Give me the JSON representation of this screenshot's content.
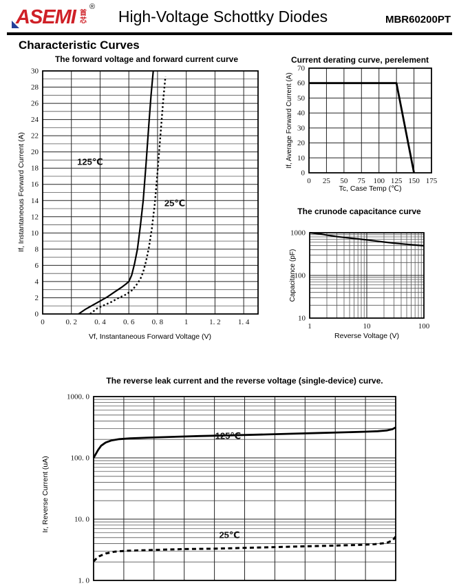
{
  "header": {
    "logo_text": "ASEMI",
    "logo_sub": "首芯",
    "logo_reg": "®",
    "logo_color": "#cf2027",
    "logo_accent_blue": "#24409a",
    "title": "High-Voltage Schottky Diodes",
    "part_number": "MBR60200PT"
  },
  "section_title": "Characteristic Curves",
  "chart_data": [
    {
      "type": "line",
      "title": "The forward voltage and forward current curve",
      "xlabel": "Vf, Instantaneous Forward Voltage (V)",
      "ylabel": "If, Instantaneous Forward Current (A)",
      "x": {
        "scale": "linear",
        "min": 0,
        "max": 1.5
      },
      "y": {
        "scale": "linear",
        "min": 0,
        "max": 30
      },
      "grid": {
        "x_major": [
          0.2,
          0.4,
          0.6,
          0.8,
          1.0,
          1.2,
          1.4
        ],
        "x_minor": [],
        "y_major": [
          2,
          4,
          6,
          8,
          10,
          12,
          14,
          16,
          18,
          20,
          22,
          24,
          26,
          28
        ],
        "y_minor": [
          1,
          3,
          5,
          7,
          9,
          11,
          13,
          15,
          17,
          19,
          21,
          23,
          25,
          27,
          29
        ]
      },
      "ticks": {
        "x": [
          {
            "v": 0,
            "label": "0"
          },
          {
            "v": 0.2,
            "label": "0. 2"
          },
          {
            "v": 0.4,
            "label": "0. 4"
          },
          {
            "v": 0.6,
            "label": "0. 6"
          },
          {
            "v": 0.8,
            "label": "0. 8"
          },
          {
            "v": 1,
            "label": "1"
          },
          {
            "v": 1.2,
            "label": "1. 2"
          },
          {
            "v": 1.4,
            "label": "1. 4"
          }
        ],
        "y": [
          {
            "v": 0,
            "label": "0"
          },
          {
            "v": 2,
            "label": "2"
          },
          {
            "v": 4,
            "label": "4"
          },
          {
            "v": 6,
            "label": "6"
          },
          {
            "v": 8,
            "label": "8"
          },
          {
            "v": 10,
            "label": "10"
          },
          {
            "v": 12,
            "label": "12"
          },
          {
            "v": 14,
            "label": "14"
          },
          {
            "v": 16,
            "label": "16"
          },
          {
            "v": 18,
            "label": "18"
          },
          {
            "v": 20,
            "label": "20"
          },
          {
            "v": 22,
            "label": "22"
          },
          {
            "v": 24,
            "label": "24"
          },
          {
            "v": 26,
            "label": "26"
          },
          {
            "v": 28,
            "label": "28"
          },
          {
            "v": 30,
            "label": "30"
          }
        ]
      },
      "series": [
        {
          "name": "125℃",
          "line": "solid",
          "width": 2.2,
          "points": [
            [
              0.25,
              0
            ],
            [
              0.3,
              0.6
            ],
            [
              0.35,
              1.1
            ],
            [
              0.4,
              1.6
            ],
            [
              0.45,
              2.1
            ],
            [
              0.5,
              2.7
            ],
            [
              0.55,
              3.3
            ],
            [
              0.58,
              3.7
            ],
            [
              0.6,
              4.0
            ],
            [
              0.62,
              4.8
            ],
            [
              0.64,
              6.2
            ],
            [
              0.66,
              8.0
            ],
            [
              0.68,
              10.8
            ],
            [
              0.7,
              14.0
            ],
            [
              0.72,
              18.5
            ],
            [
              0.74,
              23.5
            ],
            [
              0.755,
              27.0
            ],
            [
              0.77,
              30.0
            ]
          ]
        },
        {
          "name": "25℃",
          "line": "dotted",
          "width": 2.4,
          "dash": "2.5 3.2",
          "points": [
            [
              0.33,
              0
            ],
            [
              0.38,
              0.7
            ],
            [
              0.43,
              1.1
            ],
            [
              0.48,
              1.5
            ],
            [
              0.53,
              2.0
            ],
            [
              0.58,
              2.4
            ],
            [
              0.62,
              2.9
            ],
            [
              0.65,
              3.5
            ],
            [
              0.68,
              4.3
            ],
            [
              0.7,
              5.2
            ],
            [
              0.72,
              6.5
            ],
            [
              0.74,
              8.2
            ],
            [
              0.76,
              10.5
            ],
            [
              0.78,
              13.5
            ],
            [
              0.8,
              17.5
            ],
            [
              0.82,
              22.0
            ],
            [
              0.84,
              26.5
            ],
            [
              0.855,
              29.3
            ]
          ]
        }
      ],
      "annotations": [
        {
          "text": "125℃",
          "x": 0.33,
          "y": 18.4
        },
        {
          "text": "25℃",
          "x": 0.92,
          "y": 13.3
        }
      ]
    },
    {
      "type": "line",
      "title": "Current derating curve, perelement",
      "xlabel": "Tc, Case Temp (℃)",
      "ylabel": "If, Average Forward Current (A)",
      "x": {
        "scale": "linear",
        "min": 0,
        "max": 175
      },
      "y": {
        "scale": "linear",
        "min": 0,
        "max": 70
      },
      "grid": {
        "x_major": [
          25,
          50,
          75,
          100,
          125,
          150
        ],
        "x_minor": [],
        "y_major": [
          10,
          20,
          30,
          40,
          50,
          60
        ],
        "y_minor": []
      },
      "ticks": {
        "x": [
          {
            "v": 0,
            "label": "0"
          },
          {
            "v": 25,
            "label": "25"
          },
          {
            "v": 50,
            "label": "50"
          },
          {
            "v": 75,
            "label": "75"
          },
          {
            "v": 100,
            "label": "100"
          },
          {
            "v": 125,
            "label": "125"
          },
          {
            "v": 150,
            "label": "150"
          },
          {
            "v": 175,
            "label": "175"
          }
        ],
        "y": [
          {
            "v": 0,
            "label": "0"
          },
          {
            "v": 10,
            "label": "10"
          },
          {
            "v": 20,
            "label": "20"
          },
          {
            "v": 30,
            "label": "30"
          },
          {
            "v": 40,
            "label": "40"
          },
          {
            "v": 50,
            "label": "50"
          },
          {
            "v": 60,
            "label": "60"
          },
          {
            "v": 70,
            "label": "70"
          }
        ]
      },
      "series": [
        {
          "name": "derating",
          "line": "solid",
          "width": 2.8,
          "points": [
            [
              0,
              60
            ],
            [
              125,
              60
            ],
            [
              150,
              0
            ]
          ]
        }
      ],
      "annotations": []
    },
    {
      "type": "line",
      "title": "The crunode capacitance curve",
      "xlabel": "Reverse Voltage (V)",
      "ylabel": "Capacitance (pF)",
      "x": {
        "scale": "log",
        "min": 1,
        "max": 100
      },
      "y": {
        "scale": "log",
        "min": 10,
        "max": 1000
      },
      "grid": {
        "x_major": [
          10
        ],
        "x_minor": [
          2,
          3,
          4,
          5,
          6,
          7,
          8,
          9,
          20,
          30,
          40,
          50,
          60,
          70,
          80,
          90
        ],
        "y_major": [
          100
        ],
        "y_minor": [
          20,
          30,
          40,
          50,
          60,
          70,
          80,
          90,
          200,
          300,
          400,
          500,
          600,
          700,
          800,
          900
        ]
      },
      "ticks": {
        "x": [
          {
            "v": 1,
            "label": "1"
          },
          {
            "v": 10,
            "label": "10"
          },
          {
            "v": 100,
            "label": "100"
          }
        ],
        "y": [
          {
            "v": 10,
            "label": "10"
          },
          {
            "v": 100,
            "label": "100"
          },
          {
            "v": 1000,
            "label": "1000"
          }
        ]
      },
      "series": [
        {
          "name": "capacitance",
          "line": "solid",
          "width": 2.2,
          "points": [
            [
              1,
              1000
            ],
            [
              1.5,
              940
            ],
            [
              2,
              880
            ],
            [
              3,
              810
            ],
            [
              5,
              750
            ],
            [
              7,
              715
            ],
            [
              10,
              680
            ],
            [
              15,
              635
            ],
            [
              20,
              605
            ],
            [
              30,
              570
            ],
            [
              50,
              535
            ],
            [
              70,
              515
            ],
            [
              100,
              495
            ]
          ]
        }
      ],
      "annotations": []
    },
    {
      "type": "line",
      "title": "The reverse leak current and the reverse voltage (single-device) curve.",
      "xlabel": "",
      "ylabel": "Ir, Reverse Current (uA)",
      "x": {
        "scale": "linear",
        "min": 0,
        "max": 10
      },
      "y": {
        "scale": "log",
        "min": 1,
        "max": 1000
      },
      "grid": {
        "x_major": [
          1,
          2,
          3,
          4,
          5,
          6,
          7,
          8,
          9
        ],
        "x_minor": [],
        "y_major": [
          10,
          100
        ],
        "y_minor": [
          2,
          3,
          4,
          5,
          6,
          7,
          8,
          9,
          20,
          30,
          40,
          50,
          60,
          70,
          80,
          90,
          200,
          300,
          400,
          500,
          600,
          700,
          800,
          900
        ]
      },
      "ticks": {
        "x": [],
        "y": [
          {
            "v": 1,
            "label": "1. 0"
          },
          {
            "v": 10,
            "label": "10. 0"
          },
          {
            "v": 100,
            "label": "100. 0"
          },
          {
            "v": 1000,
            "label": "1000. 0"
          }
        ]
      },
      "series": [
        {
          "name": "125℃",
          "line": "solid",
          "width": 2.8,
          "points": [
            [
              0,
              100
            ],
            [
              0.07,
              115
            ],
            [
              0.15,
              135
            ],
            [
              0.25,
              158
            ],
            [
              0.4,
              178
            ],
            [
              0.6,
              193
            ],
            [
              0.85,
              202
            ],
            [
              1.2,
              208
            ],
            [
              1.8,
              214
            ],
            [
              2.6,
              220
            ],
            [
              3.5,
              227
            ],
            [
              4.5,
              233
            ],
            [
              5.5,
              240
            ],
            [
              6.5,
              247
            ],
            [
              7.5,
              255
            ],
            [
              8.3,
              261
            ],
            [
              9.0,
              267
            ],
            [
              9.4,
              272
            ],
            [
              9.7,
              280
            ],
            [
              9.9,
              295
            ],
            [
              10,
              315
            ]
          ]
        },
        {
          "name": "25℃",
          "line": "dotted",
          "width": 3,
          "dash": "6 4.5",
          "points": [
            [
              0,
              2.05
            ],
            [
              0.1,
              2.3
            ],
            [
              0.2,
              2.5
            ],
            [
              0.4,
              2.75
            ],
            [
              0.7,
              2.95
            ],
            [
              1.1,
              3.05
            ],
            [
              2,
              3.15
            ],
            [
              3,
              3.25
            ],
            [
              4,
              3.3
            ],
            [
              5,
              3.4
            ],
            [
              6,
              3.5
            ],
            [
              7,
              3.6
            ],
            [
              8,
              3.7
            ],
            [
              8.8,
              3.8
            ],
            [
              9.3,
              3.9
            ],
            [
              9.7,
              4.1
            ],
            [
              9.9,
              4.5
            ],
            [
              10,
              5.2
            ]
          ]
        }
      ],
      "annotations": [
        {
          "text": "125℃",
          "x": 4.45,
          "y": 205
        },
        {
          "text": "25℃",
          "x": 4.5,
          "y": 4.9
        }
      ]
    }
  ]
}
